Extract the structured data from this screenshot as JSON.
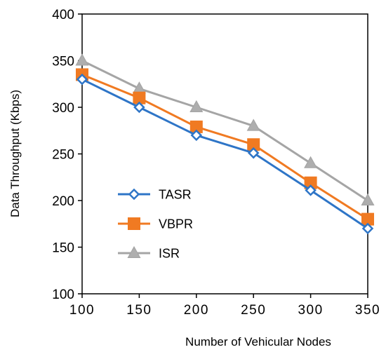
{
  "chart_data": {
    "type": "line",
    "title": "",
    "xlabel": "Number of Vehicular Nodes",
    "ylabel": "Data Throughput (Kbps)",
    "x": [
      100,
      150,
      200,
      250,
      300,
      350
    ],
    "xlim": [
      100,
      350
    ],
    "ylim": [
      100,
      400
    ],
    "xticks": [
      100,
      150,
      200,
      250,
      300,
      350
    ],
    "yticks": [
      100,
      150,
      200,
      250,
      300,
      350,
      400
    ],
    "grid": false,
    "legend_position": "lower-left inside",
    "series": [
      {
        "name": "TASR",
        "marker": "diamond",
        "color": "#2e75c7",
        "values": [
          330,
          300,
          270,
          251,
          211,
          170
        ]
      },
      {
        "name": "VBPR",
        "marker": "square",
        "color": "#f07a22",
        "values": [
          335,
          310,
          279,
          260,
          219,
          180
        ]
      },
      {
        "name": "ISR",
        "marker": "triangle",
        "color": "#a5a5a5",
        "values": [
          350,
          320,
          300,
          280,
          240,
          200
        ]
      }
    ]
  }
}
